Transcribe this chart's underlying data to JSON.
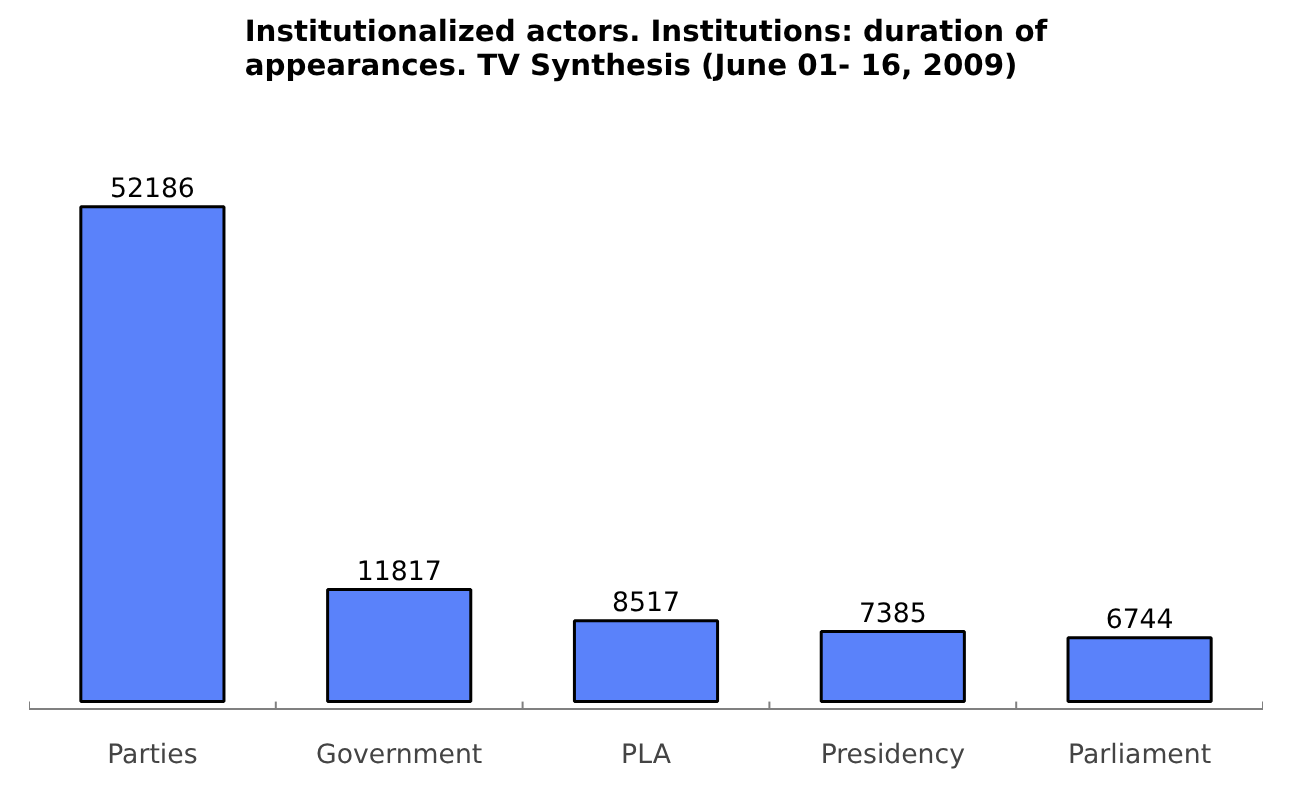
{
  "chart_data": {
    "type": "bar",
    "title": "Institutionalized actors. Institutions: duration of\nappearances. TV Synthesis (June 01- 16, 2009)",
    "categories": [
      "Parties",
      "Government",
      "PLA",
      "Presidency",
      "Parliament"
    ],
    "values": [
      52186,
      11817,
      8517,
      7385,
      6744
    ],
    "color": "#5a82fa",
    "data_labels": true,
    "tick_labels": "x"
  }
}
